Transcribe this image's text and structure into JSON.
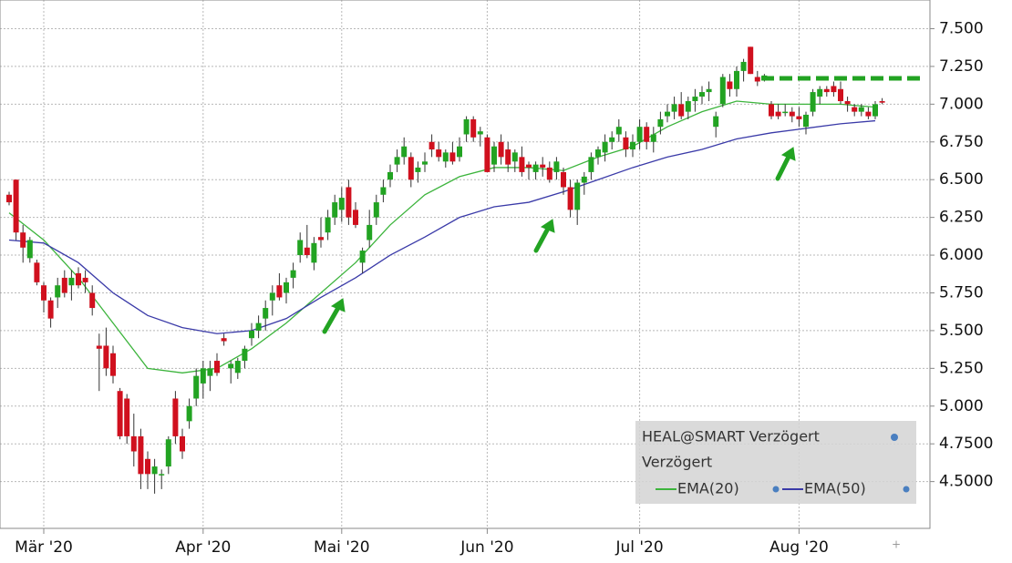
{
  "chart_data": {
    "type": "candlestick",
    "categories": [
      null,
      null,
      null,
      null,
      null,
      "Mär '20",
      null,
      null,
      null,
      null,
      null,
      null,
      null,
      null,
      null,
      null,
      null,
      null,
      null,
      null,
      null,
      null,
      null,
      null,
      null,
      null,
      null,
      null,
      "Apr '20",
      null,
      null,
      null,
      null,
      null,
      null,
      null,
      null,
      null,
      null,
      null,
      null,
      null,
      null,
      null,
      null,
      null,
      null,
      null,
      "Mai '20",
      null,
      null,
      null,
      null,
      null,
      null,
      null,
      null,
      null,
      null,
      null,
      null,
      null,
      null,
      null,
      null,
      null,
      null,
      null,
      null,
      "Jun '20",
      null,
      null,
      null,
      null,
      null,
      null,
      null,
      null,
      null,
      null,
      null,
      null,
      null,
      null,
      null,
      null,
      null,
      null,
      null,
      null,
      null,
      "Jul '20",
      null,
      null,
      null,
      null,
      null,
      null,
      null,
      null,
      null,
      null,
      null,
      null,
      null,
      null,
      null,
      null,
      null,
      null,
      null,
      null,
      null,
      null,
      "Aug '20",
      null,
      null,
      null,
      null,
      null,
      null,
      null,
      null,
      null,
      null,
      null,
      null
    ],
    "ylim": [
      4.19,
      7.69
    ],
    "yticks": [
      {
        "value": 7.5,
        "label": "7.500"
      },
      {
        "value": 7.25,
        "label": "7.250"
      },
      {
        "value": 7,
        "label": "7.000"
      },
      {
        "value": 6.75,
        "label": "6.750"
      },
      {
        "value": 6.5,
        "label": "6.500"
      },
      {
        "value": 6.25,
        "label": "6.250"
      },
      {
        "value": 6,
        "label": "6.000"
      },
      {
        "value": 5.75,
        "label": "5.750"
      },
      {
        "value": 5.5,
        "label": "5.500"
      },
      {
        "value": 5.25,
        "label": "5.250"
      },
      {
        "value": 5,
        "label": "5.000"
      },
      {
        "value": 4.75,
        "label": "4.7500"
      },
      {
        "value": 4.5,
        "label": "4.5000"
      }
    ],
    "grid": true,
    "legend_subtitle": "Verzögert",
    "series": [
      {
        "name": "HEAL@SMART Verzögert",
        "up_color": "#22a322",
        "down_color": "#d0101e",
        "ohlc": [
          [
            6.4,
            6.42,
            6.33,
            6.35
          ],
          [
            6.5,
            6.5,
            6.1,
            6.15
          ],
          [
            6.15,
            6.2,
            5.95,
            6.05
          ],
          [
            5.98,
            6.12,
            5.95,
            6.1
          ],
          [
            5.95,
            5.97,
            5.8,
            5.82
          ],
          [
            5.8,
            5.82,
            5.62,
            5.7
          ],
          [
            5.7,
            5.72,
            5.52,
            5.58
          ],
          [
            5.72,
            5.85,
            5.65,
            5.8
          ],
          [
            5.85,
            5.9,
            5.72,
            5.75
          ],
          [
            5.8,
            5.9,
            5.7,
            5.85
          ],
          [
            5.88,
            5.92,
            5.78,
            5.8
          ],
          [
            5.85,
            5.9,
            5.75,
            5.82
          ],
          [
            5.75,
            5.8,
            5.6,
            5.65
          ],
          [
            5.4,
            5.48,
            5.1,
            5.38
          ],
          [
            5.4,
            5.52,
            5.2,
            5.25
          ],
          [
            5.35,
            5.4,
            5.15,
            5.2
          ],
          [
            5.1,
            5.12,
            4.78,
            4.8
          ],
          [
            5.05,
            5.08,
            4.75,
            4.8
          ],
          [
            4.8,
            4.95,
            4.6,
            4.7
          ],
          [
            4.8,
            4.85,
            4.45,
            4.55
          ],
          [
            4.65,
            4.7,
            4.45,
            4.55
          ],
          [
            4.55,
            4.65,
            4.42,
            4.6
          ],
          [
            4.55,
            4.58,
            4.45,
            4.55
          ],
          [
            4.6,
            4.8,
            4.55,
            4.78
          ],
          [
            5.05,
            5.1,
            4.75,
            4.8
          ],
          [
            4.8,
            4.85,
            4.65,
            4.7
          ],
          [
            4.9,
            5.05,
            4.85,
            5.0
          ],
          [
            5.05,
            5.25,
            5.0,
            5.2
          ],
          [
            5.15,
            5.3,
            5.05,
            5.25
          ],
          [
            5.2,
            5.3,
            5.1,
            5.25
          ],
          [
            5.3,
            5.35,
            5.2,
            5.22
          ],
          [
            5.45,
            5.48,
            5.4,
            5.43
          ],
          [
            5.25,
            5.3,
            5.15,
            5.28
          ],
          [
            5.22,
            5.32,
            5.18,
            5.3
          ],
          [
            5.3,
            5.4,
            5.25,
            5.38
          ],
          [
            5.45,
            5.55,
            5.4,
            5.5
          ],
          [
            5.5,
            5.6,
            5.45,
            5.55
          ],
          [
            5.58,
            5.7,
            5.5,
            5.65
          ],
          [
            5.7,
            5.8,
            5.6,
            5.75
          ],
          [
            5.8,
            5.88,
            5.7,
            5.72
          ],
          [
            5.75,
            5.85,
            5.68,
            5.82
          ],
          [
            5.85,
            5.95,
            5.78,
            5.9
          ],
          [
            6.0,
            6.15,
            5.95,
            6.1
          ],
          [
            6.05,
            6.2,
            5.98,
            6.0
          ],
          [
            5.95,
            6.12,
            5.9,
            6.08
          ],
          [
            6.12,
            6.25,
            6.05,
            6.1
          ],
          [
            6.15,
            6.3,
            6.1,
            6.25
          ],
          [
            6.25,
            6.4,
            6.2,
            6.35
          ],
          [
            6.3,
            6.45,
            6.22,
            6.38
          ],
          [
            6.45,
            6.5,
            6.2,
            6.25
          ],
          [
            6.3,
            6.35,
            6.18,
            6.2
          ],
          [
            5.95,
            6.05,
            5.88,
            6.03
          ],
          [
            6.1,
            6.3,
            6.05,
            6.2
          ],
          [
            6.25,
            6.4,
            6.2,
            6.35
          ],
          [
            6.4,
            6.5,
            6.35,
            6.45
          ],
          [
            6.5,
            6.6,
            6.45,
            6.55
          ],
          [
            6.6,
            6.7,
            6.55,
            6.65
          ],
          [
            6.65,
            6.78,
            6.6,
            6.72
          ],
          [
            6.65,
            6.68,
            6.45,
            6.5
          ],
          [
            6.55,
            6.62,
            6.48,
            6.58
          ],
          [
            6.6,
            6.68,
            6.55,
            6.62
          ],
          [
            6.75,
            6.8,
            6.65,
            6.7
          ],
          [
            6.7,
            6.75,
            6.62,
            6.65
          ],
          [
            6.62,
            6.7,
            6.58,
            6.68
          ],
          [
            6.68,
            6.75,
            6.6,
            6.62
          ],
          [
            6.65,
            6.78,
            6.62,
            6.72
          ],
          [
            6.8,
            6.92,
            6.75,
            6.9
          ],
          [
            6.9,
            6.92,
            6.75,
            6.78
          ],
          [
            6.8,
            6.85,
            6.72,
            6.82
          ],
          [
            6.78,
            6.8,
            6.55,
            6.55
          ],
          [
            6.6,
            6.75,
            6.55,
            6.72
          ],
          [
            6.75,
            6.8,
            6.6,
            6.65
          ],
          [
            6.7,
            6.75,
            6.55,
            6.6
          ],
          [
            6.62,
            6.7,
            6.55,
            6.68
          ],
          [
            6.65,
            6.72,
            6.52,
            6.55
          ],
          [
            6.6,
            6.62,
            6.5,
            6.58
          ],
          [
            6.55,
            6.62,
            6.5,
            6.6
          ],
          [
            6.6,
            6.65,
            6.52,
            6.58
          ],
          [
            6.58,
            6.62,
            6.48,
            6.5
          ],
          [
            6.55,
            6.65,
            6.5,
            6.62
          ],
          [
            6.55,
            6.58,
            6.4,
            6.45
          ],
          [
            6.45,
            6.5,
            6.25,
            6.3
          ],
          [
            6.3,
            6.5,
            6.2,
            6.48
          ],
          [
            6.48,
            6.55,
            6.4,
            6.52
          ],
          [
            6.55,
            6.68,
            6.5,
            6.65
          ],
          [
            6.65,
            6.72,
            6.6,
            6.7
          ],
          [
            6.68,
            6.8,
            6.62,
            6.75
          ],
          [
            6.75,
            6.82,
            6.7,
            6.78
          ],
          [
            6.8,
            6.9,
            6.75,
            6.85
          ],
          [
            6.78,
            6.82,
            6.65,
            6.7
          ],
          [
            6.7,
            6.8,
            6.65,
            6.75
          ],
          [
            6.75,
            6.9,
            6.7,
            6.85
          ],
          [
            6.85,
            6.88,
            6.7,
            6.75
          ],
          [
            6.75,
            6.85,
            6.68,
            6.8
          ],
          [
            6.85,
            6.95,
            6.8,
            6.9
          ],
          [
            6.92,
            7.0,
            6.88,
            6.95
          ],
          [
            6.95,
            7.05,
            6.9,
            7.0
          ],
          [
            7.0,
            7.08,
            6.9,
            6.92
          ],
          [
            6.95,
            7.05,
            6.9,
            7.02
          ],
          [
            7.02,
            7.1,
            6.95,
            7.05
          ],
          [
            7.05,
            7.12,
            7.0,
            7.08
          ],
          [
            7.08,
            7.15,
            7.02,
            7.1
          ],
          [
            6.85,
            6.95,
            6.78,
            6.92
          ],
          [
            7.0,
            7.2,
            6.98,
            7.18
          ],
          [
            7.15,
            7.2,
            7.05,
            7.1
          ],
          [
            7.1,
            7.25,
            7.05,
            7.22
          ],
          [
            7.22,
            7.3,
            7.15,
            7.28
          ],
          [
            7.38,
            7.38,
            7.2,
            7.2
          ],
          [
            7.18,
            7.22,
            7.12,
            7.15
          ],
          [
            7.18,
            7.2,
            7.15,
            7.19
          ],
          [
            7.0,
            7.02,
            6.9,
            6.92
          ],
          [
            6.95,
            7.0,
            6.9,
            6.92
          ],
          [
            6.95,
            7.0,
            6.92,
            6.95
          ],
          [
            6.95,
            6.98,
            6.88,
            6.92
          ],
          [
            6.92,
            6.98,
            6.85,
            6.9
          ],
          [
            6.85,
            6.95,
            6.8,
            6.93
          ],
          [
            6.95,
            7.1,
            6.92,
            7.08
          ],
          [
            7.05,
            7.12,
            7.0,
            7.1
          ],
          [
            7.1,
            7.12,
            7.05,
            7.08
          ],
          [
            7.12,
            7.15,
            7.05,
            7.08
          ],
          [
            7.1,
            7.15,
            7.0,
            7.02
          ],
          [
            7.02,
            7.05,
            6.95,
            7.0
          ],
          [
            6.98,
            7.0,
            6.92,
            6.95
          ],
          [
            6.95,
            7.0,
            6.92,
            6.98
          ],
          [
            6.95,
            6.98,
            6.9,
            6.92
          ],
          [
            6.92,
            7.02,
            6.9,
            7.0
          ],
          [
            7.02,
            7.04,
            7.0,
            7.01
          ]
        ]
      },
      {
        "name": "EMA(20)",
        "color": "#3cb43c",
        "x": [
          0,
          5,
          10,
          15,
          20,
          25,
          30,
          35,
          40,
          45,
          50,
          55,
          60,
          65,
          70,
          75,
          80,
          85,
          90,
          95,
          100,
          105,
          110,
          115,
          120,
          125
        ],
        "values": [
          6.28,
          6.1,
          5.85,
          5.55,
          5.25,
          5.22,
          5.25,
          5.38,
          5.55,
          5.75,
          5.95,
          6.2,
          6.4,
          6.52,
          6.58,
          6.58,
          6.56,
          6.65,
          6.72,
          6.85,
          6.95,
          7.02,
          7.0,
          7.0,
          7.0,
          6.98
        ]
      },
      {
        "name": "EMA(50)",
        "color": "#3a3aa8",
        "x": [
          0,
          5,
          10,
          15,
          20,
          25,
          30,
          35,
          40,
          45,
          50,
          55,
          60,
          65,
          70,
          75,
          80,
          85,
          90,
          95,
          100,
          105,
          110,
          115,
          120,
          125
        ],
        "values": [
          6.1,
          6.08,
          5.95,
          5.75,
          5.6,
          5.52,
          5.48,
          5.5,
          5.58,
          5.72,
          5.85,
          6.0,
          6.12,
          6.25,
          6.32,
          6.35,
          6.42,
          6.5,
          6.58,
          6.65,
          6.7,
          6.77,
          6.81,
          6.84,
          6.87,
          6.89
        ]
      }
    ]
  }
}
